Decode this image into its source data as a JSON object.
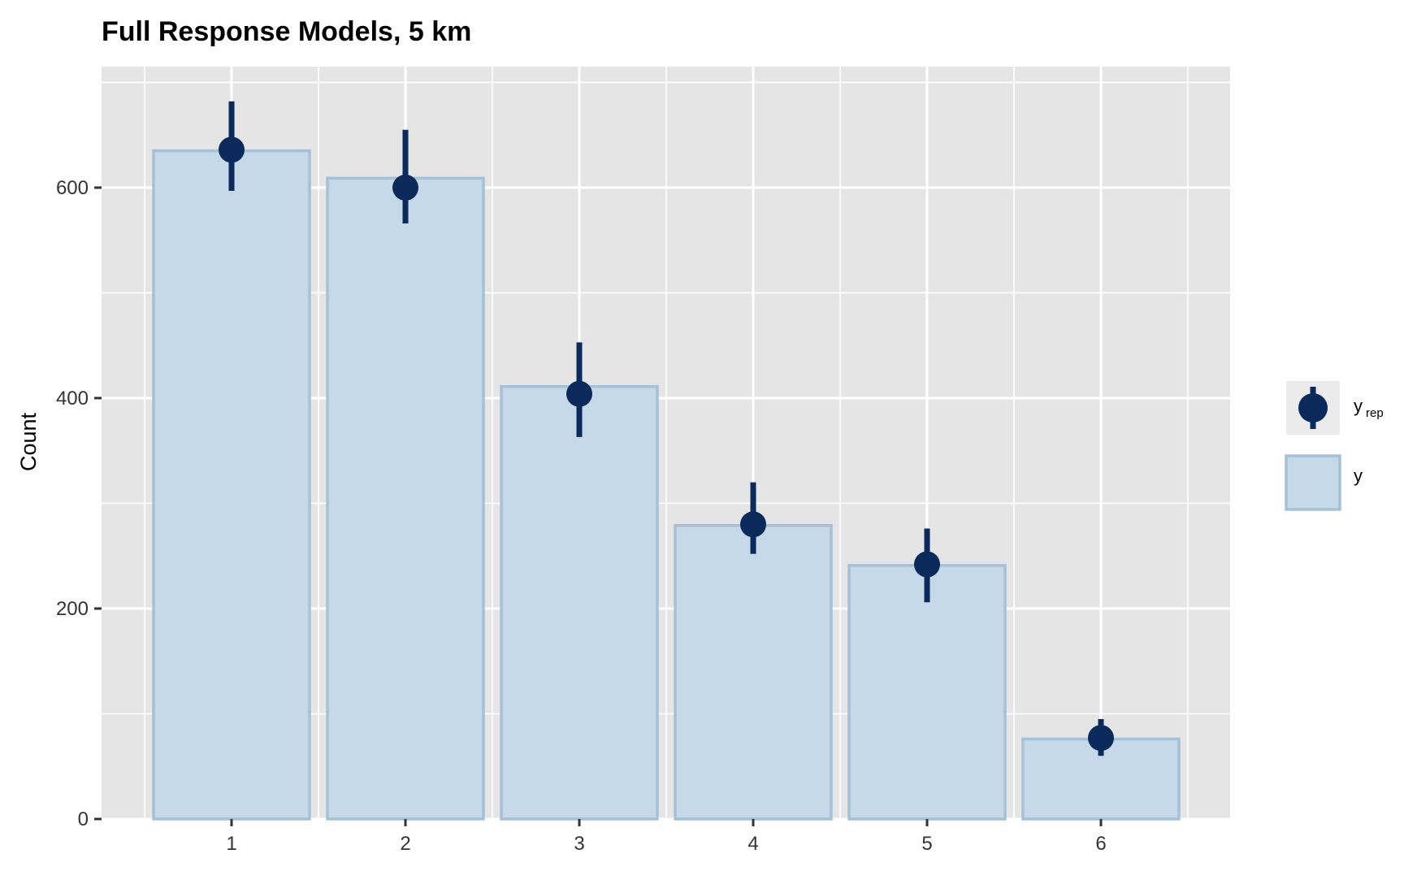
{
  "chart_data": {
    "type": "bar",
    "title": "Full Response Models, 5 km",
    "xlabel": "",
    "ylabel": "Count",
    "categories": [
      "1",
      "2",
      "3",
      "4",
      "5",
      "6"
    ],
    "ylim": [
      0,
      715
    ],
    "yticks": [
      0,
      200,
      400,
      600
    ],
    "grid": true,
    "legend_position": "right",
    "series": [
      {
        "name": "y",
        "values": [
          635,
          609,
          411,
          279,
          241,
          76
        ],
        "fill_color": "#c6d9e8",
        "stroke_color": "#a5c1d7"
      },
      {
        "name": "y_rep",
        "median": [
          636,
          600,
          404,
          280,
          242,
          77
        ],
        "lower": [
          597,
          566,
          363,
          252,
          206,
          60
        ],
        "upper": [
          682,
          655,
          453,
          320,
          276,
          95
        ],
        "color": "#0b2a5c"
      }
    ],
    "legend": [
      {
        "key": "y_rep",
        "label_main": "y",
        "label_sub": "rep"
      },
      {
        "key": "y",
        "label_main": "y"
      }
    ],
    "panel_bg": "#e5e5e5",
    "grid_color": "#ffffff"
  }
}
